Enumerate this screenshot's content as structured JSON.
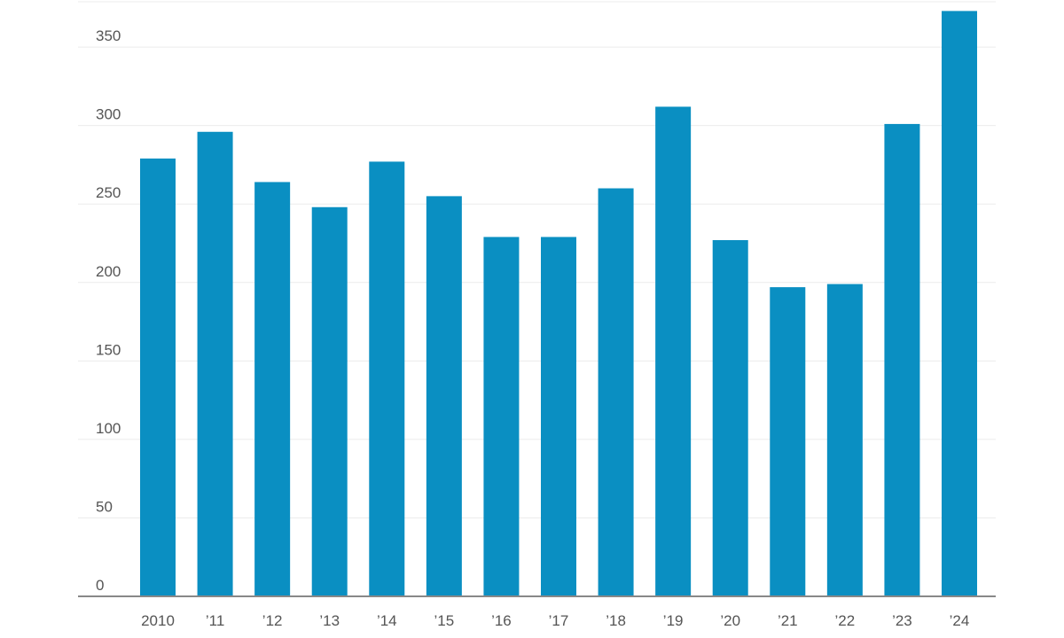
{
  "colors": {
    "bar": "#0a8fc2",
    "grid": "#ececec",
    "axis": "#888888",
    "text": "#555555"
  },
  "chart_data": {
    "type": "bar",
    "title": "",
    "xlabel": "",
    "ylabel": "",
    "ylim": [
      0,
      380
    ],
    "yticks": [
      0,
      50,
      100,
      150,
      200,
      250,
      300,
      350
    ],
    "grid": true,
    "categories": [
      "2010",
      "’11",
      "’12",
      "’13",
      "’14",
      "’15",
      "’16",
      "’17",
      "’18",
      "’19",
      "’20",
      "’21",
      "’22",
      "’23",
      "’24"
    ],
    "values": [
      279,
      296,
      264,
      248,
      277,
      255,
      229,
      229,
      260,
      312,
      227,
      197,
      199,
      301,
      373
    ]
  }
}
